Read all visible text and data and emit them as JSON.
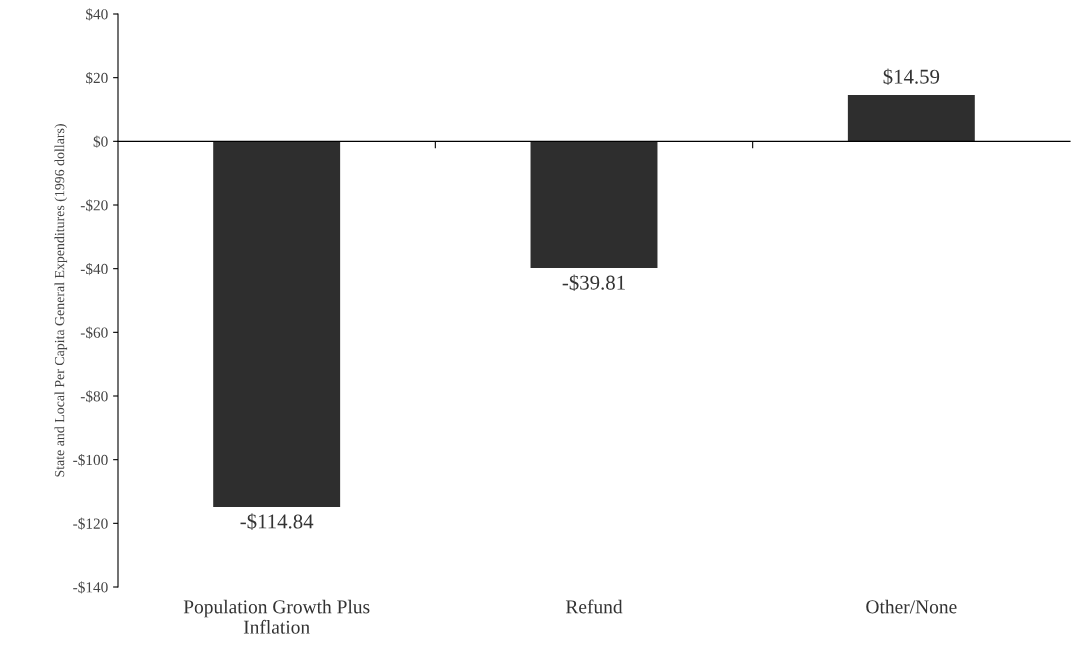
{
  "chart_data": {
    "type": "bar",
    "ylabel": "State and Local Per Capita General Expenditures (1996 dollars)",
    "categories": [
      "Population Growth Plus\nInflation",
      "Refund",
      "Other/None"
    ],
    "values": [
      -114.84,
      -39.81,
      14.59
    ],
    "value_labels": [
      "-$114.84",
      "-$39.81",
      "$14.59"
    ],
    "color": "#2e2e2e",
    "ylim": [
      -140,
      40
    ],
    "yticks": [
      {
        "value": 40,
        "label": "$40"
      },
      {
        "value": 20,
        "label": "$20"
      },
      {
        "value": 0,
        "label": "$0"
      },
      {
        "value": -20,
        "label": "-$20"
      },
      {
        "value": -40,
        "label": "-$40"
      },
      {
        "value": -60,
        "label": "-$60"
      },
      {
        "value": -80,
        "label": "-$80"
      },
      {
        "value": -100,
        "label": "-$100"
      },
      {
        "value": -120,
        "label": "-$120"
      },
      {
        "value": -140,
        "label": "-$140"
      }
    ]
  }
}
